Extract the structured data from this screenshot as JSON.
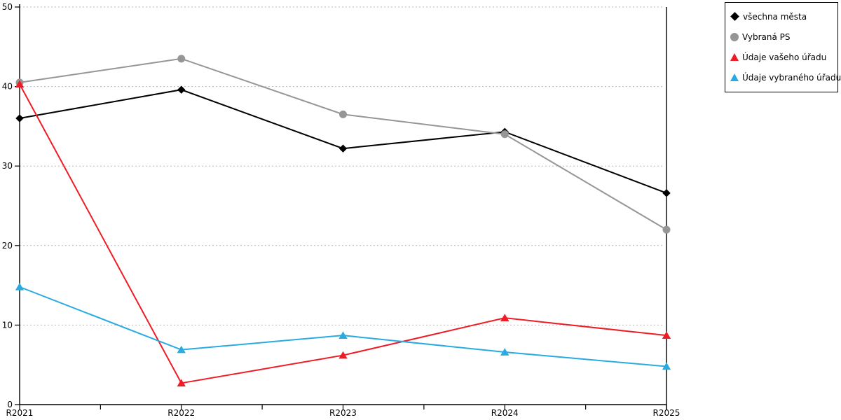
{
  "chart_data": {
    "type": "line",
    "categories": [
      "R2021",
      "R2022",
      "R2023",
      "R2024",
      "R2025"
    ],
    "series": [
      {
        "name": "všechna města",
        "marker": "diamond",
        "color": "#000000",
        "values": [
          36.0,
          39.6,
          32.2,
          34.3,
          26.6
        ]
      },
      {
        "name": "Vybraná PS",
        "marker": "circle",
        "color": "#969696",
        "values": [
          40.5,
          43.5,
          36.5,
          34.0,
          22.0
        ]
      },
      {
        "name": "Údaje vašeho úřadu",
        "marker": "triangle",
        "color": "#ee1c24",
        "values": [
          40.3,
          2.7,
          6.2,
          10.9,
          8.7
        ]
      },
      {
        "name": "Údaje vybraného úřadu",
        "marker": "triangle",
        "color": "#29abe2",
        "values": [
          14.8,
          6.9,
          8.7,
          6.6,
          4.8
        ]
      }
    ],
    "title": "",
    "xlabel": "",
    "ylabel": "",
    "ylim": [
      0,
      50
    ],
    "ytick_interval": 10,
    "yticks": [
      "0",
      "10",
      "20",
      "30",
      "40",
      "50"
    ],
    "grid": "horizontal-dotted",
    "grid_color": "#b8b8b8",
    "axis_color": "#000000",
    "background": "#ffffff",
    "legend_position": "top-right-outside"
  }
}
